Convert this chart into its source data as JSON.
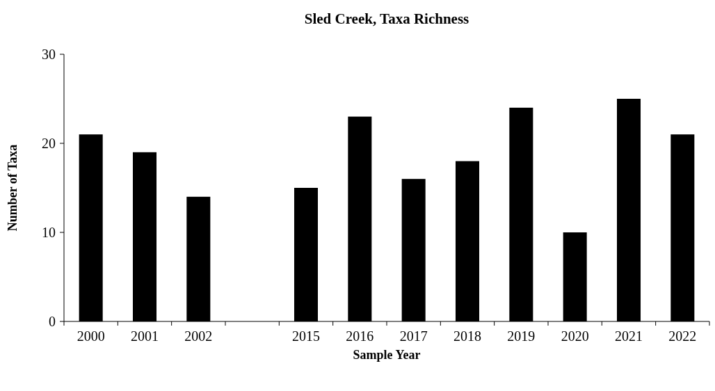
{
  "chart_data": {
    "type": "bar",
    "title": "Sled Creek, Taxa Richness",
    "xlabel": "Sample Year",
    "ylabel": "Number of Taxa",
    "categories": [
      "2000",
      "2001",
      "2002",
      null,
      "2015",
      "2016",
      "2017",
      "2018",
      "2019",
      "2020",
      "2021",
      "2022"
    ],
    "values": [
      21,
      19,
      14,
      null,
      15,
      23,
      16,
      18,
      24,
      10,
      25,
      21
    ],
    "color": "#000000",
    "ylim": [
      0,
      30
    ],
    "yticks": [
      0,
      10,
      20,
      30
    ],
    "grid": false
  }
}
